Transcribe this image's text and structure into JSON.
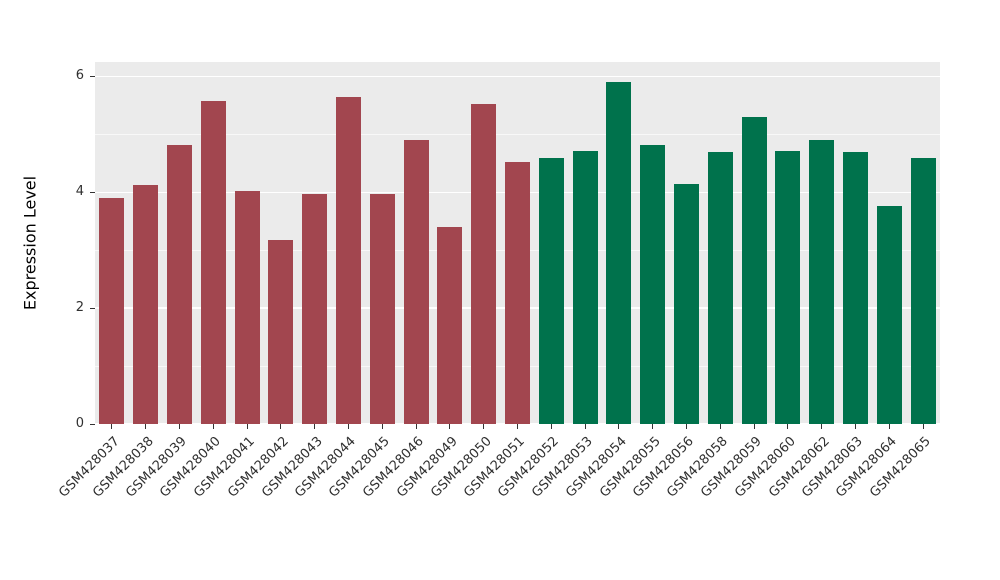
{
  "chart_data": {
    "type": "bar",
    "title": "",
    "xlabel": "",
    "ylabel": "Expression Level",
    "ylim": [
      0,
      6
    ],
    "yticks": [
      "0",
      "2",
      "4",
      "6"
    ],
    "minor_gridlines": [
      1,
      3,
      5
    ],
    "grid": "on",
    "legend_position": "none",
    "panel_background": "#EBEBEB",
    "gridline_color": "#FFFFFF",
    "group_colors": {
      "red": "#A2464F",
      "green": "#00724C"
    },
    "bars": [
      {
        "label": "GSM428037",
        "value": 3.9,
        "group": "red"
      },
      {
        "label": "GSM428038",
        "value": 4.12,
        "group": "red"
      },
      {
        "label": "GSM428039",
        "value": 4.82,
        "group": "red"
      },
      {
        "label": "GSM428040",
        "value": 5.57,
        "group": "red"
      },
      {
        "label": "GSM428041",
        "value": 4.02,
        "group": "red"
      },
      {
        "label": "GSM428042",
        "value": 3.18,
        "group": "red"
      },
      {
        "label": "GSM428043",
        "value": 3.97,
        "group": "red"
      },
      {
        "label": "GSM428044",
        "value": 5.64,
        "group": "red"
      },
      {
        "label": "GSM428045",
        "value": 3.97,
        "group": "red"
      },
      {
        "label": "GSM428046",
        "value": 4.9,
        "group": "red"
      },
      {
        "label": "GSM428049",
        "value": 3.4,
        "group": "red"
      },
      {
        "label": "GSM428050",
        "value": 5.53,
        "group": "red"
      },
      {
        "label": "GSM428051",
        "value": 4.53,
        "group": "red"
      },
      {
        "label": "GSM428052",
        "value": 4.6,
        "group": "green"
      },
      {
        "label": "GSM428053",
        "value": 4.72,
        "group": "green"
      },
      {
        "label": "GSM428054",
        "value": 5.9,
        "group": "green"
      },
      {
        "label": "GSM428055",
        "value": 4.82,
        "group": "green"
      },
      {
        "label": "GSM428056",
        "value": 4.15,
        "group": "green"
      },
      {
        "label": "GSM428058",
        "value": 4.7,
        "group": "green"
      },
      {
        "label": "GSM428059",
        "value": 5.3,
        "group": "green"
      },
      {
        "label": "GSM428060",
        "value": 4.72,
        "group": "green"
      },
      {
        "label": "GSM428062",
        "value": 4.9,
        "group": "green"
      },
      {
        "label": "GSM428063",
        "value": 4.7,
        "group": "green"
      },
      {
        "label": "GSM428064",
        "value": 3.77,
        "group": "green"
      },
      {
        "label": "GSM428065",
        "value": 4.6,
        "group": "green"
      }
    ]
  }
}
